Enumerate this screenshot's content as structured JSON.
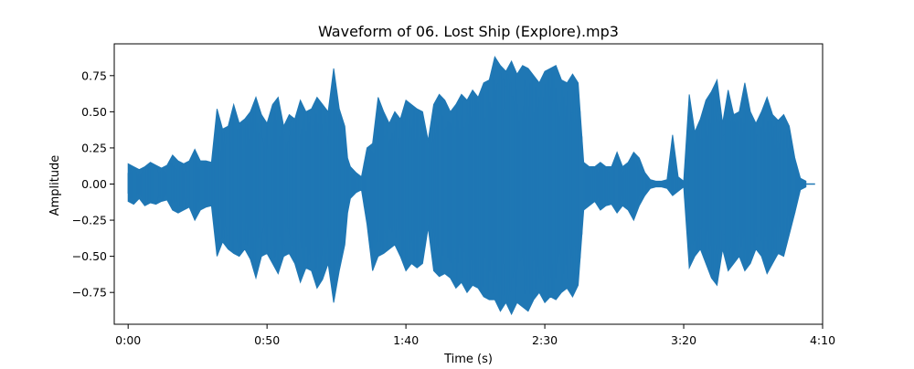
{
  "chart_data": {
    "type": "line",
    "title": "Waveform of 06. Lost Ship (Explore).mp3",
    "xlabel": "Time (s)",
    "ylabel": "Amplitude",
    "xlim": [
      -5,
      250
    ],
    "ylim": [
      -0.97,
      0.97
    ],
    "x_ticks": [
      0,
      50,
      100,
      150,
      200,
      250
    ],
    "x_tick_labels": [
      "0:00",
      "0:50",
      "1:40",
      "2:30",
      "3:20",
      "4:10"
    ],
    "y_ticks": [
      -0.75,
      -0.5,
      -0.25,
      0.0,
      0.25,
      0.5,
      0.75
    ],
    "y_tick_labels": [
      "−0.75",
      "−0.50",
      "−0.25",
      "0.00",
      "0.25",
      "0.50",
      "0.75"
    ],
    "grid": false,
    "series": [
      {
        "color": "#1f77b4",
        "x": [
          0,
          2,
          4,
          6,
          8,
          10,
          12,
          14,
          16,
          18,
          20,
          22,
          24,
          26,
          28,
          30,
          32,
          34,
          36,
          38,
          40,
          42,
          44,
          46,
          48,
          50,
          52,
          54,
          56,
          58,
          60,
          62,
          64,
          66,
          68,
          70,
          72,
          74,
          76,
          78,
          79,
          80,
          82,
          84,
          86,
          88,
          90,
          92,
          94,
          96,
          98,
          100,
          102,
          104,
          106,
          108,
          110,
          112,
          114,
          116,
          118,
          120,
          122,
          124,
          126,
          128,
          130,
          132,
          134,
          136,
          138,
          140,
          142,
          144,
          146,
          148,
          150,
          152,
          154,
          156,
          158,
          160,
          162,
          164,
          166,
          168,
          170,
          172,
          174,
          176,
          178,
          180,
          182,
          184,
          186,
          188,
          190,
          192,
          194,
          196,
          198,
          200,
          202,
          204,
          206,
          208,
          210,
          212,
          214,
          216,
          218,
          220,
          222,
          224,
          226,
          228,
          230,
          232,
          234,
          236,
          238,
          240,
          242,
          244
        ],
        "y_upper": [
          0.14,
          0.12,
          0.1,
          0.12,
          0.15,
          0.13,
          0.11,
          0.13,
          0.2,
          0.16,
          0.14,
          0.16,
          0.24,
          0.16,
          0.16,
          0.15,
          0.52,
          0.38,
          0.4,
          0.55,
          0.42,
          0.45,
          0.5,
          0.6,
          0.48,
          0.42,
          0.55,
          0.6,
          0.4,
          0.48,
          0.45,
          0.58,
          0.5,
          0.52,
          0.6,
          0.55,
          0.5,
          0.8,
          0.52,
          0.4,
          0.18,
          0.12,
          0.08,
          0.05,
          0.25,
          0.28,
          0.6,
          0.5,
          0.42,
          0.5,
          0.45,
          0.58,
          0.55,
          0.52,
          0.5,
          0.3,
          0.55,
          0.62,
          0.58,
          0.5,
          0.55,
          0.62,
          0.58,
          0.65,
          0.6,
          0.7,
          0.72,
          0.88,
          0.82,
          0.78,
          0.85,
          0.76,
          0.82,
          0.8,
          0.75,
          0.7,
          0.78,
          0.8,
          0.82,
          0.72,
          0.7,
          0.76,
          0.7,
          0.15,
          0.12,
          0.12,
          0.15,
          0.12,
          0.12,
          0.22,
          0.12,
          0.15,
          0.22,
          0.18,
          0.08,
          0.03,
          0.02,
          0.02,
          0.03,
          0.34,
          0.05,
          0.02,
          0.62,
          0.36,
          0.45,
          0.58,
          0.64,
          0.72,
          0.42,
          0.65,
          0.48,
          0.5,
          0.7,
          0.5,
          0.42,
          0.5,
          0.6,
          0.48,
          0.44,
          0.48,
          0.4,
          0.18,
          0.04,
          0.02
        ],
        "y_lower": [
          -0.12,
          -0.14,
          -0.1,
          -0.15,
          -0.13,
          -0.14,
          -0.12,
          -0.11,
          -0.18,
          -0.2,
          -0.18,
          -0.16,
          -0.25,
          -0.18,
          -0.16,
          -0.15,
          -0.5,
          -0.4,
          -0.45,
          -0.48,
          -0.5,
          -0.45,
          -0.52,
          -0.65,
          -0.5,
          -0.48,
          -0.55,
          -0.62,
          -0.5,
          -0.48,
          -0.55,
          -0.68,
          -0.58,
          -0.6,
          -0.72,
          -0.66,
          -0.55,
          -0.82,
          -0.6,
          -0.42,
          -0.2,
          -0.1,
          -0.06,
          -0.04,
          -0.28,
          -0.6,
          -0.5,
          -0.48,
          -0.45,
          -0.42,
          -0.5,
          -0.6,
          -0.55,
          -0.58,
          -0.55,
          -0.3,
          -0.6,
          -0.64,
          -0.62,
          -0.65,
          -0.72,
          -0.68,
          -0.75,
          -0.7,
          -0.72,
          -0.78,
          -0.8,
          -0.8,
          -0.88,
          -0.82,
          -0.9,
          -0.82,
          -0.85,
          -0.88,
          -0.8,
          -0.75,
          -0.82,
          -0.78,
          -0.8,
          -0.75,
          -0.72,
          -0.78,
          -0.7,
          -0.18,
          -0.15,
          -0.12,
          -0.18,
          -0.15,
          -0.14,
          -0.2,
          -0.15,
          -0.18,
          -0.25,
          -0.15,
          -0.08,
          -0.03,
          -0.02,
          -0.02,
          -0.03,
          -0.08,
          -0.05,
          -0.02,
          -0.58,
          -0.5,
          -0.45,
          -0.55,
          -0.65,
          -0.7,
          -0.45,
          -0.6,
          -0.55,
          -0.5,
          -0.6,
          -0.55,
          -0.45,
          -0.5,
          -0.62,
          -0.55,
          -0.48,
          -0.5,
          -0.35,
          -0.2,
          -0.04,
          -0.02
        ]
      }
    ]
  }
}
